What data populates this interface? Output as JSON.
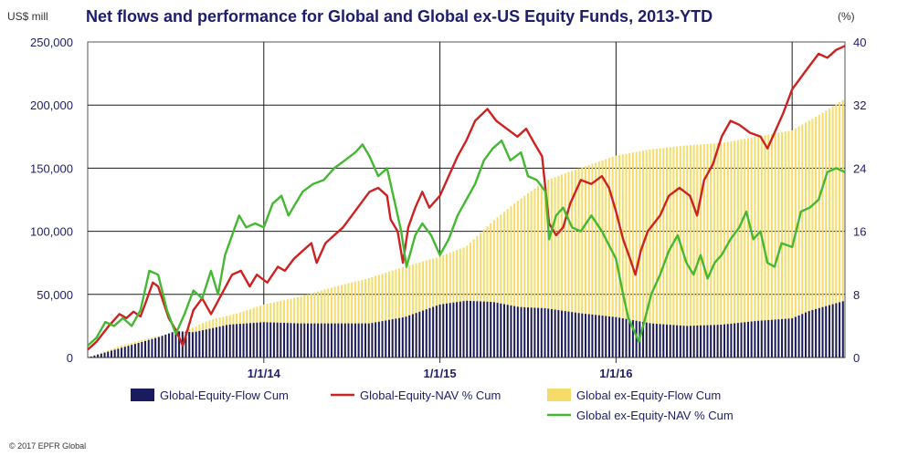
{
  "chart_data": {
    "type": "bar+line",
    "title": "Net flows and performance for Global and Global ex-US Equity Funds, 2013-YTD",
    "ylabel_left": "US$ mill",
    "ylabel_right": "(%)",
    "ylim_left": [
      0,
      250000
    ],
    "ylim_right": [
      0,
      40
    ],
    "yticks_left": [
      "0",
      "50,000",
      "100,000",
      "150,000",
      "200,000",
      "250,000"
    ],
    "yticks_right": [
      "0",
      "8",
      "16",
      "24",
      "32",
      "40"
    ],
    "yticks_left_values": [
      0,
      50000,
      100000,
      150000,
      200000,
      250000
    ],
    "yticks_right_values": [
      0,
      8,
      16,
      24,
      32,
      40
    ],
    "x_start": 2013.0,
    "x_end": 2017.3,
    "xticks": [
      {
        "label": "1/1/14",
        "x": 2014.0
      },
      {
        "label": "1/1/15",
        "x": 2015.0
      },
      {
        "label": "1/1/16",
        "x": 2016.0
      }
    ],
    "extra_gridlines_x": [
      2017.0
    ],
    "copyright": "© 2017 EPFR Global",
    "series": [
      {
        "name": "Global-Equity-Flow Cum",
        "kind": "bar",
        "axis": "left",
        "color": "#1a1a5e",
        "points": [
          [
            2013.0,
            0
          ],
          [
            2013.2,
            8000
          ],
          [
            2013.4,
            16000
          ],
          [
            2013.5,
            21000
          ],
          [
            2013.6,
            20000
          ],
          [
            2013.8,
            26000
          ],
          [
            2014.0,
            28000
          ],
          [
            2014.2,
            27000
          ],
          [
            2014.4,
            27000
          ],
          [
            2014.6,
            27000
          ],
          [
            2014.8,
            32000
          ],
          [
            2015.0,
            42000
          ],
          [
            2015.15,
            45000
          ],
          [
            2015.3,
            44000
          ],
          [
            2015.45,
            40000
          ],
          [
            2015.6,
            39000
          ],
          [
            2015.8,
            35000
          ],
          [
            2016.0,
            32000
          ],
          [
            2016.2,
            27000
          ],
          [
            2016.4,
            25000
          ],
          [
            2016.6,
            26000
          ],
          [
            2016.8,
            29000
          ],
          [
            2017.0,
            31000
          ],
          [
            2017.1,
            37000
          ],
          [
            2017.3,
            45000
          ]
        ]
      },
      {
        "name": "Global-Equity-NAV % Cum",
        "kind": "line",
        "axis": "right",
        "color": "#cc2222",
        "points": [
          [
            2013.0,
            1.0
          ],
          [
            2013.05,
            2.0
          ],
          [
            2013.12,
            4.0
          ],
          [
            2013.18,
            5.5
          ],
          [
            2013.22,
            5.0
          ],
          [
            2013.26,
            5.8
          ],
          [
            2013.3,
            5.2
          ],
          [
            2013.33,
            7.0
          ],
          [
            2013.37,
            9.5
          ],
          [
            2013.4,
            9.0
          ],
          [
            2013.46,
            5.0
          ],
          [
            2013.5,
            3.5
          ],
          [
            2013.54,
            1.5
          ],
          [
            2013.6,
            6.0
          ],
          [
            2013.65,
            7.5
          ],
          [
            2013.7,
            5.5
          ],
          [
            2013.76,
            8.0
          ],
          [
            2013.82,
            10.5
          ],
          [
            2013.87,
            11.0
          ],
          [
            2013.92,
            9.0
          ],
          [
            2013.96,
            10.5
          ],
          [
            2014.02,
            9.5
          ],
          [
            2014.08,
            11.5
          ],
          [
            2014.12,
            11.0
          ],
          [
            2014.17,
            12.5
          ],
          [
            2014.22,
            13.5
          ],
          [
            2014.27,
            14.5
          ],
          [
            2014.3,
            12.0
          ],
          [
            2014.35,
            14.5
          ],
          [
            2014.4,
            15.5
          ],
          [
            2014.45,
            16.5
          ],
          [
            2014.5,
            18.0
          ],
          [
            2014.55,
            19.5
          ],
          [
            2014.6,
            21.0
          ],
          [
            2014.65,
            21.5
          ],
          [
            2014.7,
            20.5
          ],
          [
            2014.72,
            17.5
          ],
          [
            2014.76,
            16.0
          ],
          [
            2014.79,
            12.0
          ],
          [
            2014.82,
            16.5
          ],
          [
            2014.86,
            19.0
          ],
          [
            2014.9,
            21.0
          ],
          [
            2014.94,
            19.0
          ],
          [
            2015.0,
            20.5
          ],
          [
            2015.05,
            23.0
          ],
          [
            2015.1,
            25.5
          ],
          [
            2015.15,
            27.5
          ],
          [
            2015.2,
            30.0
          ],
          [
            2015.27,
            31.5
          ],
          [
            2015.32,
            30.0
          ],
          [
            2015.38,
            29.0
          ],
          [
            2015.44,
            28.0
          ],
          [
            2015.49,
            29.0
          ],
          [
            2015.54,
            27.0
          ],
          [
            2015.58,
            25.5
          ],
          [
            2015.62,
            17.0
          ],
          [
            2015.66,
            15.5
          ],
          [
            2015.7,
            16.5
          ],
          [
            2015.74,
            19.5
          ],
          [
            2015.8,
            22.5
          ],
          [
            2015.86,
            22.0
          ],
          [
            2015.92,
            23.0
          ],
          [
            2015.96,
            21.5
          ],
          [
            2016.0,
            18.5
          ],
          [
            2016.04,
            15.0
          ],
          [
            2016.08,
            12.5
          ],
          [
            2016.11,
            10.5
          ],
          [
            2016.14,
            13.5
          ],
          [
            2016.18,
            16.0
          ],
          [
            2016.25,
            18.0
          ],
          [
            2016.3,
            20.5
          ],
          [
            2016.36,
            21.5
          ],
          [
            2016.42,
            20.5
          ],
          [
            2016.46,
            18.0
          ],
          [
            2016.5,
            22.5
          ],
          [
            2016.55,
            24.5
          ],
          [
            2016.6,
            28.0
          ],
          [
            2016.65,
            30.0
          ],
          [
            2016.7,
            29.5
          ],
          [
            2016.76,
            28.5
          ],
          [
            2016.82,
            28.0
          ],
          [
            2016.86,
            26.5
          ],
          [
            2016.9,
            28.5
          ],
          [
            2016.95,
            31.0
          ],
          [
            2017.0,
            34.0
          ],
          [
            2017.05,
            35.5
          ],
          [
            2017.1,
            37.0
          ],
          [
            2017.15,
            38.5
          ],
          [
            2017.2,
            38.0
          ],
          [
            2017.25,
            39.0
          ],
          [
            2017.3,
            39.5
          ]
        ]
      },
      {
        "name": "Global ex-Equity-Flow Cum",
        "kind": "bar",
        "axis": "left",
        "color": "#f5dc6a",
        "points": [
          [
            2013.0,
            0
          ],
          [
            2013.2,
            10000
          ],
          [
            2013.4,
            17000
          ],
          [
            2013.55,
            21000
          ],
          [
            2013.7,
            30000
          ],
          [
            2013.85,
            35000
          ],
          [
            2014.0,
            42000
          ],
          [
            2014.2,
            48000
          ],
          [
            2014.4,
            56000
          ],
          [
            2014.6,
            63000
          ],
          [
            2014.8,
            72000
          ],
          [
            2015.0,
            80000
          ],
          [
            2015.15,
            88000
          ],
          [
            2015.3,
            108000
          ],
          [
            2015.45,
            125000
          ],
          [
            2015.6,
            140000
          ],
          [
            2015.75,
            148000
          ],
          [
            2015.9,
            155000
          ],
          [
            2016.0,
            160000
          ],
          [
            2016.2,
            165000
          ],
          [
            2016.4,
            168000
          ],
          [
            2016.6,
            170000
          ],
          [
            2016.8,
            175000
          ],
          [
            2017.0,
            180000
          ],
          [
            2017.15,
            192000
          ],
          [
            2017.3,
            205000
          ]
        ]
      },
      {
        "name": "Global ex-Equity-NAV % Cum",
        "kind": "line",
        "axis": "right",
        "color": "#44b832",
        "points": [
          [
            2013.0,
            1.5
          ],
          [
            2013.05,
            2.5
          ],
          [
            2013.1,
            4.5
          ],
          [
            2013.15,
            4.0
          ],
          [
            2013.2,
            5.0
          ],
          [
            2013.25,
            4.0
          ],
          [
            2013.3,
            6.0
          ],
          [
            2013.35,
            11.0
          ],
          [
            2013.4,
            10.5
          ],
          [
            2013.45,
            6.0
          ],
          [
            2013.5,
            3.0
          ],
          [
            2013.55,
            5.5
          ],
          [
            2013.6,
            8.5
          ],
          [
            2013.65,
            7.5
          ],
          [
            2013.7,
            11.0
          ],
          [
            2013.74,
            8.0
          ],
          [
            2013.78,
            13.0
          ],
          [
            2013.82,
            15.5
          ],
          [
            2013.86,
            18.0
          ],
          [
            2013.9,
            16.5
          ],
          [
            2013.95,
            17.0
          ],
          [
            2014.0,
            16.5
          ],
          [
            2014.05,
            19.5
          ],
          [
            2014.1,
            20.5
          ],
          [
            2014.14,
            18.0
          ],
          [
            2014.18,
            19.5
          ],
          [
            2014.22,
            21.0
          ],
          [
            2014.28,
            22.0
          ],
          [
            2014.34,
            22.5
          ],
          [
            2014.4,
            24.0
          ],
          [
            2014.46,
            25.0
          ],
          [
            2014.52,
            26.0
          ],
          [
            2014.56,
            27.0
          ],
          [
            2014.6,
            25.5
          ],
          [
            2014.65,
            23.0
          ],
          [
            2014.7,
            24.0
          ],
          [
            2014.74,
            20.0
          ],
          [
            2014.78,
            16.0
          ],
          [
            2014.81,
            11.5
          ],
          [
            2014.86,
            15.5
          ],
          [
            2014.9,
            17.0
          ],
          [
            2014.95,
            15.5
          ],
          [
            2015.0,
            13.0
          ],
          [
            2015.05,
            15.0
          ],
          [
            2015.1,
            18.0
          ],
          [
            2015.15,
            20.0
          ],
          [
            2015.2,
            22.0
          ],
          [
            2015.25,
            25.0
          ],
          [
            2015.3,
            26.5
          ],
          [
            2015.35,
            27.5
          ],
          [
            2015.4,
            25.0
          ],
          [
            2015.46,
            26.0
          ],
          [
            2015.5,
            23.0
          ],
          [
            2015.55,
            22.5
          ],
          [
            2015.6,
            21.0
          ],
          [
            2015.62,
            15.0
          ],
          [
            2015.66,
            18.0
          ],
          [
            2015.7,
            19.0
          ],
          [
            2015.75,
            16.5
          ],
          [
            2015.8,
            16.0
          ],
          [
            2015.86,
            18.0
          ],
          [
            2015.92,
            16.0
          ],
          [
            2016.0,
            12.5
          ],
          [
            2016.04,
            8.0
          ],
          [
            2016.07,
            5.0
          ],
          [
            2016.1,
            3.5
          ],
          [
            2016.13,
            2.0
          ],
          [
            2016.16,
            4.5
          ],
          [
            2016.2,
            8.0
          ],
          [
            2016.25,
            10.5
          ],
          [
            2016.3,
            13.5
          ],
          [
            2016.35,
            15.5
          ],
          [
            2016.4,
            12.0
          ],
          [
            2016.44,
            10.5
          ],
          [
            2016.48,
            13.0
          ],
          [
            2016.52,
            10.0
          ],
          [
            2016.56,
            12.0
          ],
          [
            2016.6,
            13.0
          ],
          [
            2016.65,
            15.0
          ],
          [
            2016.7,
            16.5
          ],
          [
            2016.74,
            18.5
          ],
          [
            2016.78,
            15.0
          ],
          [
            2016.82,
            16.0
          ],
          [
            2016.86,
            12.0
          ],
          [
            2016.9,
            11.5
          ],
          [
            2016.94,
            14.5
          ],
          [
            2017.0,
            14.0
          ],
          [
            2017.05,
            18.5
          ],
          [
            2017.1,
            19.0
          ],
          [
            2017.15,
            20.0
          ],
          [
            2017.2,
            23.5
          ],
          [
            2017.25,
            24.0
          ],
          [
            2017.3,
            23.5
          ]
        ]
      }
    ]
  }
}
